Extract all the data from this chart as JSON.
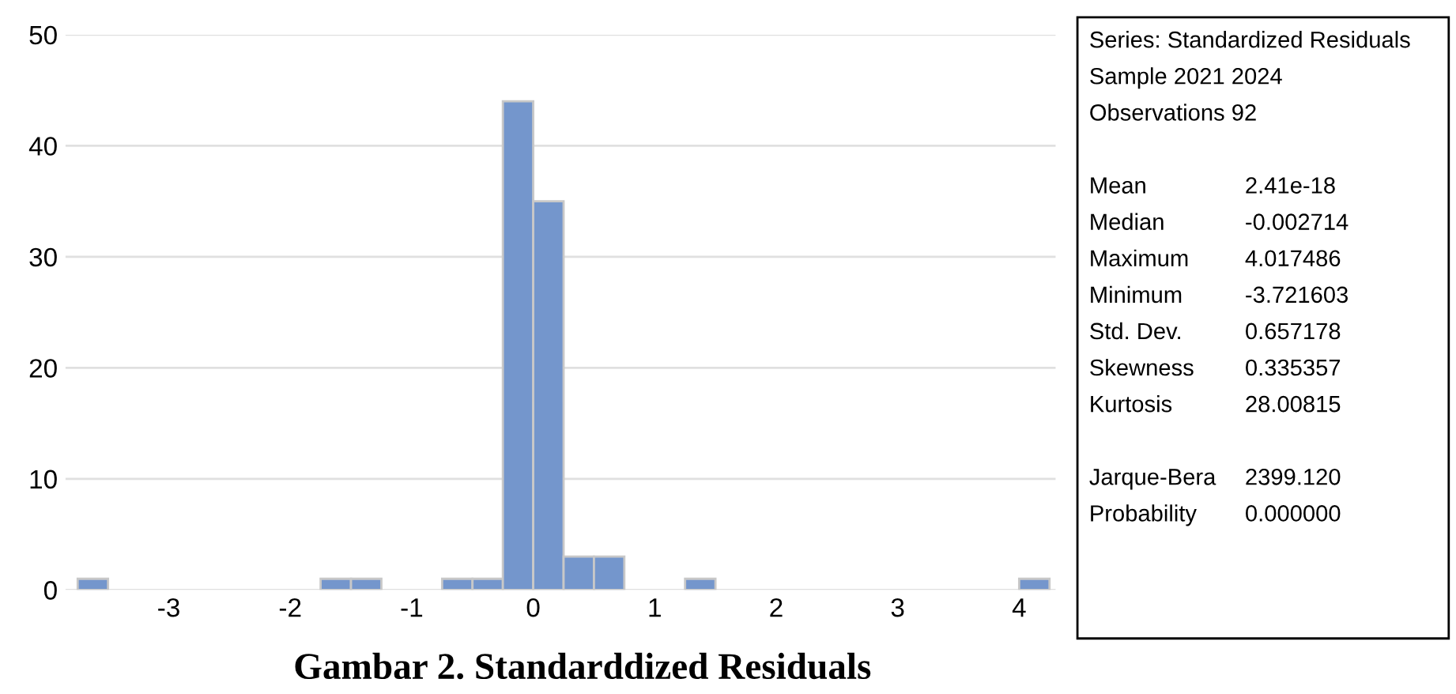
{
  "chart_data": {
    "type": "histogram",
    "title": "Gambar 2. Standarddized Residuals",
    "bins": [
      -3.75,
      -3.5,
      -3.25,
      -3.0,
      -2.75,
      -2.5,
      -2.25,
      -2.0,
      -1.75,
      -1.5,
      -1.25,
      -1.0,
      -0.75,
      -0.5,
      -0.25,
      0.0,
      0.25,
      0.5,
      0.75,
      1.0,
      1.25,
      1.5,
      1.75,
      2.0,
      2.25,
      2.5,
      2.75,
      3.0,
      3.25,
      3.5,
      3.75,
      4.0,
      4.25
    ],
    "values": [
      1,
      0,
      0,
      0,
      0,
      0,
      0,
      0,
      1,
      1,
      0,
      0,
      1,
      1,
      44,
      35,
      3,
      3,
      0,
      0,
      1,
      0,
      0,
      0,
      0,
      0,
      0,
      0,
      0,
      0,
      0,
      1
    ],
    "color": "#7496cc",
    "xlim": [
      -3.85,
      4.3
    ],
    "ylim": [
      0,
      50
    ],
    "xticks": [
      -3,
      -2,
      -1,
      0,
      1,
      2,
      3,
      4
    ],
    "yticks": [
      0,
      10,
      20,
      30,
      40,
      50
    ],
    "grid": "y",
    "annotations": [
      "Series: Standardized Residuals",
      "Sample 2021 2024",
      "Observations 92",
      "Mean\t2.41e-18",
      "Median\t-0.002714",
      "Maximum\t4.017486",
      "Minimum\t-3.721603",
      "Std. Dev.\t0.657178",
      "Skewness\t0.335357",
      "Kurtosis\t28.00815",
      "Jarque-Bera\t2399.120",
      "Probability\t0.000000"
    ]
  }
}
